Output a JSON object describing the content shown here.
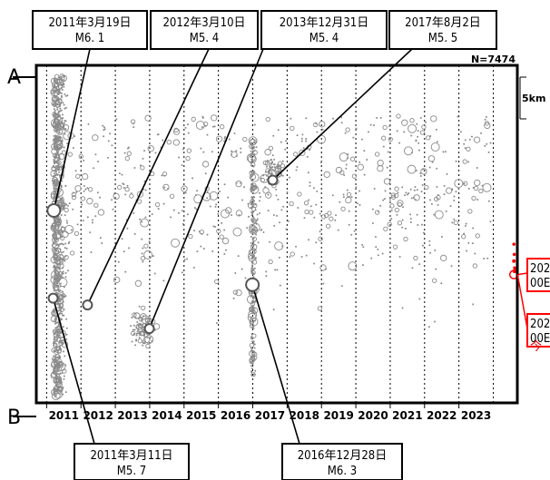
{
  "chart_data": {
    "type": "scatter",
    "xlim": [
      2010.7,
      2024.7
    ],
    "end_labels": {
      "top": "A",
      "bottom": "B"
    },
    "count_label": "N=7474",
    "scale_label": "5km",
    "x_ticks": [
      "2011",
      "2012",
      "2013",
      "2014",
      "2015",
      "2016",
      "2017",
      "2018",
      "2019",
      "2020",
      "2021",
      "2022",
      "2023"
    ],
    "annotations": [
      {
        "date": "2011年3月19日",
        "magnitude": "M6. 1",
        "x": 2011.21,
        "pos": 0.43
      },
      {
        "date": "2012年3月10日",
        "magnitude": "M5. 4",
        "x": 2012.19,
        "pos": 0.71
      },
      {
        "date": "2013年12月31日",
        "magnitude": "M5. 4",
        "x": 2013.99,
        "pos": 0.78
      },
      {
        "date": "2017年8月2日",
        "magnitude": "M5. 5",
        "x": 2017.58,
        "pos": 0.34
      },
      {
        "date": "2011年3月11日",
        "magnitude": "M5. 7",
        "x": 2011.19,
        "pos": 0.69
      },
      {
        "date": "2016年12月28日",
        "magnitude": "M6. 3",
        "x": 2016.99,
        "pos": 0.65
      }
    ],
    "recent_labels": [
      {
        "text": "202",
        "line2": "00E"
      },
      {
        "text": "202",
        "line2": "00E"
      }
    ],
    "red_text": "今",
    "colors": {
      "points": "#8a8a8a",
      "highlight": "#ff0000",
      "frame": "#000000"
    }
  }
}
